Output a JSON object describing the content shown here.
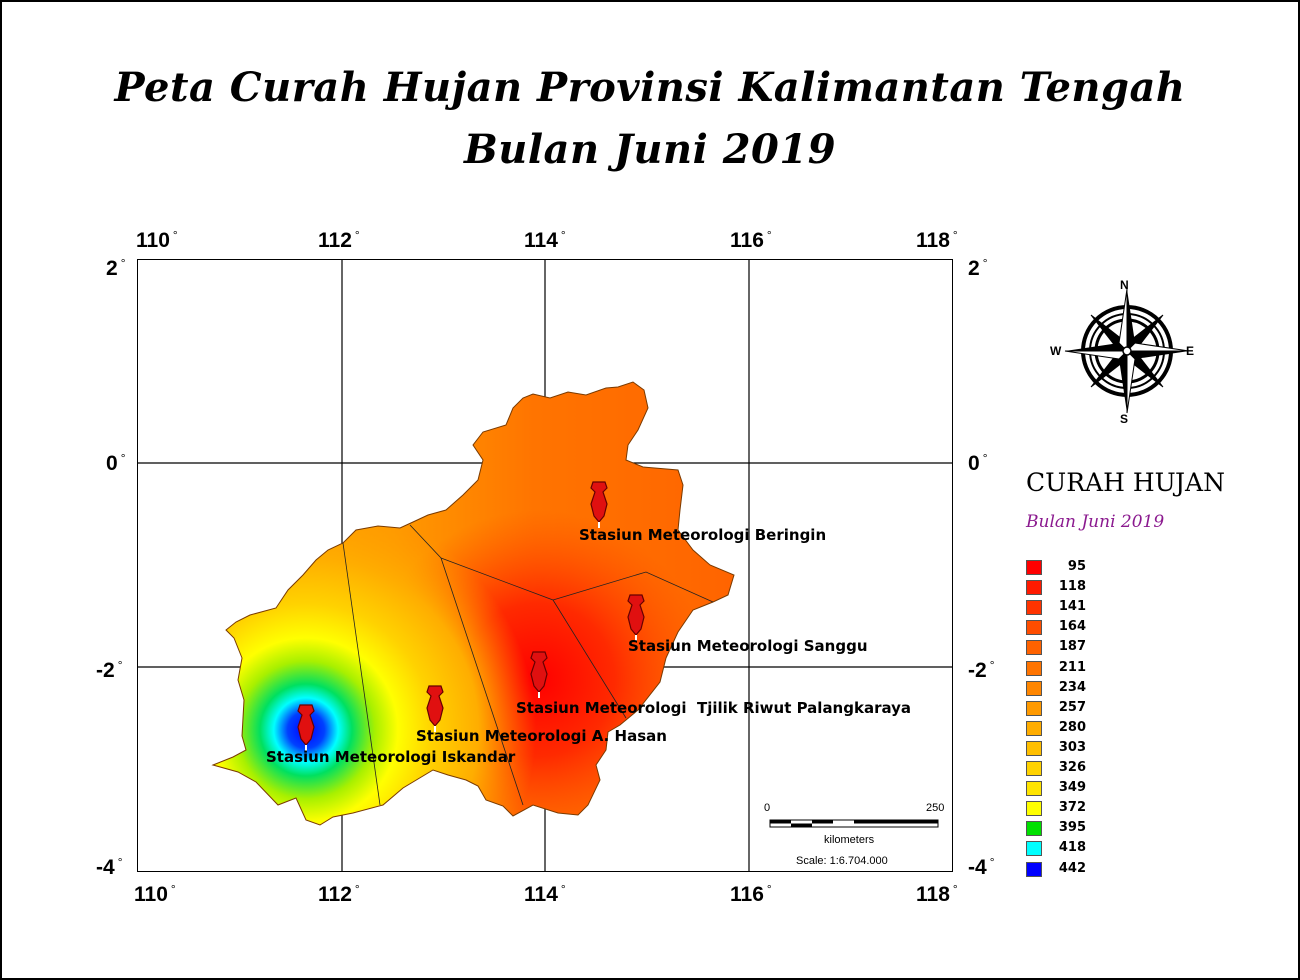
{
  "title": {
    "line1": "Peta Curah Hujan Provinsi Kalimantan Tengah",
    "line2": "Bulan Juni 2019"
  },
  "axes": {
    "longitude_ticks": [
      "110",
      "112",
      "114",
      "116",
      "118"
    ],
    "latitude_ticks": [
      "2",
      "0",
      "-2",
      "-4"
    ],
    "degree_symbol": "°"
  },
  "stations": [
    {
      "name": "Stasiun Meteorologi Beringin",
      "lon": 114.5,
      "lat": -0.4
    },
    {
      "name": "Stasiun Meteorologi Sanggu",
      "lon": 114.9,
      "lat": -1.5
    },
    {
      "name": "Stasiun Meteorologi  Tjilik Riwut Palangkaraya",
      "lon": 113.9,
      "lat": -2.05
    },
    {
      "name": "Stasiun Meteorologi A. Hasan",
      "lon": 112.9,
      "lat": -2.35
    },
    {
      "name": "Stasiun Meteorologi Iskandar",
      "lon": 111.6,
      "lat": -2.55
    }
  ],
  "scale_bar": {
    "start": "0",
    "end": "250",
    "unit": "kilometers",
    "scale_text": "Scale: 1:6.704.000"
  },
  "compass": {
    "n": "N",
    "s": "S",
    "e": "E",
    "w": "W"
  },
  "legend": {
    "title": "CURAH HUJAN",
    "subtitle": "Bulan Juni 2019",
    "items": [
      {
        "value": "95",
        "color": "#ff0000"
      },
      {
        "value": "118",
        "color": "#ff1a00"
      },
      {
        "value": "141",
        "color": "#ff3300"
      },
      {
        "value": "164",
        "color": "#ff4d00"
      },
      {
        "value": "187",
        "color": "#ff6200"
      },
      {
        "value": "211",
        "color": "#ff7400"
      },
      {
        "value": "234",
        "color": "#ff8600"
      },
      {
        "value": "257",
        "color": "#ff9a00"
      },
      {
        "value": "280",
        "color": "#ffad00"
      },
      {
        "value": "303",
        "color": "#ffbf00"
      },
      {
        "value": "326",
        "color": "#ffd200"
      },
      {
        "value": "349",
        "color": "#ffe400"
      },
      {
        "value": "372",
        "color": "#ffff00"
      },
      {
        "value": "395",
        "color": "#00e000"
      },
      {
        "value": "418",
        "color": "#00ffff"
      },
      {
        "value": "442",
        "color": "#0000ff"
      }
    ]
  }
}
